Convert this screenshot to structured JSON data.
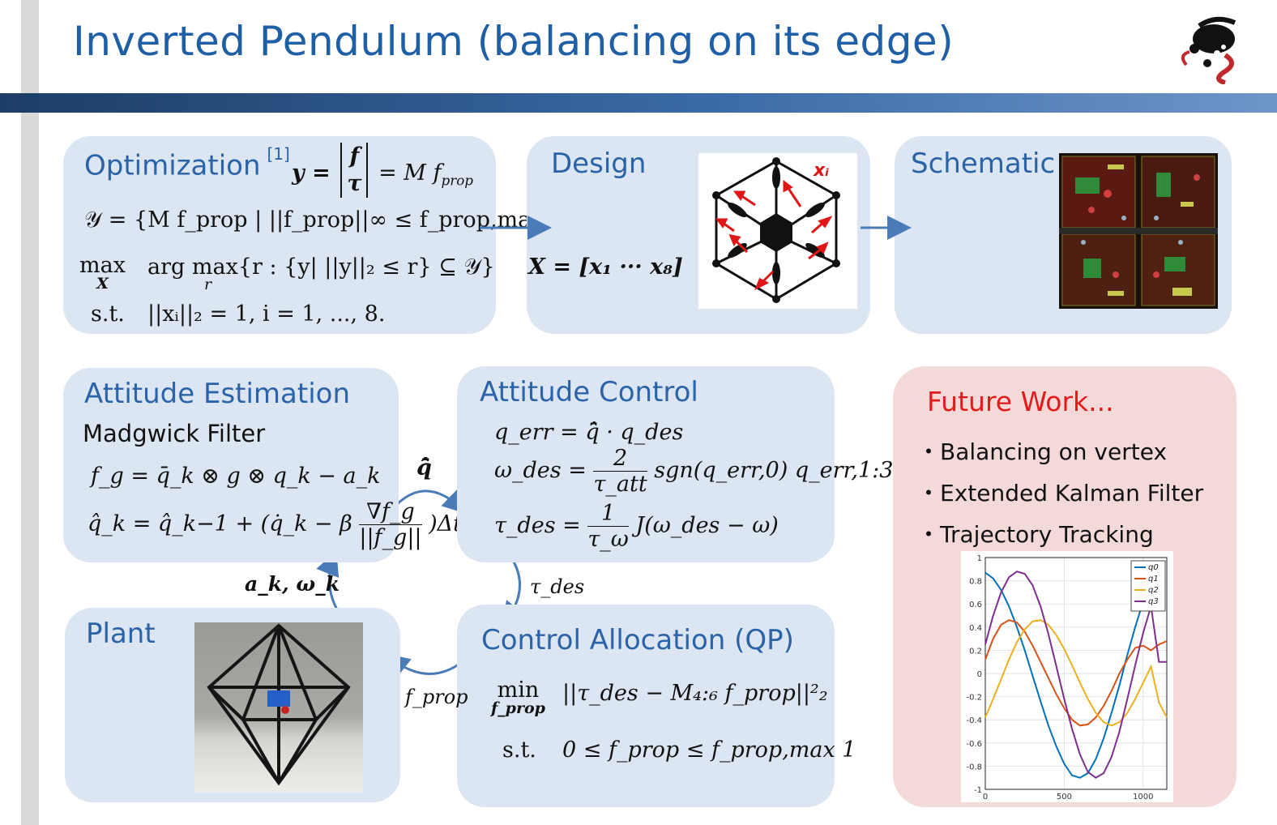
{
  "slide": {
    "title": "Inverted Pendulum (balancing on its edge)"
  },
  "optimization": {
    "title": "Optimization",
    "citation": "[1]",
    "eq_y_lhs": "y =",
    "eq_y_top": "f",
    "eq_y_bot": "τ",
    "eq_y_rhs": "= M f",
    "eq_y_rhs_sub": "prop",
    "eq_set": "𝒴 = {M f_prop | ||f_prop||∞ ≤ f_prop,max}",
    "eq_max": "max",
    "eq_max_var": "X",
    "eq_argmax": "arg max{r : {y| ||y||₂ ≤ r} ⊆ 𝒴}",
    "eq_argmax_var": "r",
    "eq_st": "s.t.",
    "eq_constraint": "||xᵢ||₂ = 1,  i = 1, ..., 8."
  },
  "design": {
    "title": "Design",
    "eq_X": "X = [x₁ ··· x₈]",
    "label_xi": "xᵢ"
  },
  "schematic": {
    "title": "Schematic"
  },
  "attitude_estimation": {
    "title": "Attitude Estimation",
    "subtitle": "Madgwick Filter",
    "eq_fg": "f_g = q̄_k ⊗ g ⊗ q_k − a_k",
    "eq_q_lhs": "q̂_k = q̂_k−1 + (q̇_k − β",
    "eq_q_num": "∇f_g",
    "eq_q_den": "||f_g||",
    "eq_q_rhs": ")Δt"
  },
  "attitude_control": {
    "title": "Attitude Control",
    "eq_qerr": "q_err = q̄̂ · q_des",
    "eq_omega_lhs": "ω_des =",
    "eq_omega_num": "2",
    "eq_omega_den": "τ_att",
    "eq_omega_rhs": "sgn(q_err,0) q_err,1:3",
    "eq_tau_lhs": "τ_des =",
    "eq_tau_num": "1",
    "eq_tau_den": "τ_ω",
    "eq_tau_rhs": "J(ω_des − ω)"
  },
  "control_allocation": {
    "title": "Control Allocation (QP)",
    "eq_min": "min",
    "eq_min_var": "f_prop",
    "eq_obj": "||τ_des − M₄:₆ f_prop||²₂",
    "eq_st": "s.t.",
    "eq_con": "0 ≤ f_prop ≤ f_prop,max 1"
  },
  "plant": {
    "title": "Plant"
  },
  "flow_labels": {
    "q_hat_bar": "q̄̂",
    "tau_des": "τ_des",
    "f_prop": "f_prop",
    "ak_omegak": "a_k,  ω_k"
  },
  "future_work": {
    "title": "Future Work...",
    "items": [
      "・Balancing on vertex",
      "・Extended Kalman Filter",
      "・Trajectory Tracking"
    ]
  },
  "chart_data": {
    "type": "line",
    "x_ticks": [
      0,
      500,
      1000
    ],
    "y_ticks": [
      "1",
      "0.8",
      "0.6",
      "0.4",
      "0.2",
      "0",
      "-0.2",
      "-0.4",
      "-0.6",
      "-0.8",
      "-1"
    ],
    "xlim": [
      0,
      1150
    ],
    "ylim": [
      -1,
      1
    ],
    "grid": true,
    "legend": "top-right",
    "series": [
      {
        "name": "q0",
        "color": "#0072bd",
        "x": [
          0,
          50,
          100,
          150,
          200,
          250,
          300,
          350,
          400,
          450,
          500,
          550,
          600,
          650,
          700,
          750,
          800,
          850,
          900,
          950,
          1000,
          1050,
          1100
        ],
        "y": [
          0.87,
          0.82,
          0.72,
          0.58,
          0.4,
          0.2,
          -0.02,
          -0.24,
          -0.45,
          -0.63,
          -0.78,
          -0.88,
          -0.9,
          -0.86,
          -0.74,
          -0.56,
          -0.34,
          -0.1,
          0.16,
          0.4,
          0.62,
          0.79,
          0.9
        ]
      },
      {
        "name": "q1",
        "color": "#d95319",
        "x": [
          0,
          50,
          100,
          150,
          200,
          250,
          300,
          350,
          400,
          450,
          500,
          550,
          600,
          650,
          700,
          750,
          800,
          850,
          900,
          950,
          1000,
          1050,
          1100,
          1150
        ],
        "y": [
          0.12,
          0.3,
          0.42,
          0.46,
          0.44,
          0.36,
          0.24,
          0.1,
          -0.04,
          -0.18,
          -0.3,
          -0.4,
          -0.45,
          -0.44,
          -0.38,
          -0.28,
          -0.15,
          0.0,
          0.12,
          0.22,
          0.24,
          0.2,
          0.25,
          0.28
        ]
      },
      {
        "name": "q2",
        "color": "#edb120",
        "x": [
          0,
          50,
          100,
          150,
          200,
          250,
          300,
          350,
          400,
          450,
          500,
          550,
          600,
          650,
          700,
          750,
          800,
          850,
          900,
          950,
          1000,
          1050,
          1100,
          1150
        ],
        "y": [
          -0.38,
          -0.22,
          -0.05,
          0.12,
          0.27,
          0.38,
          0.45,
          0.46,
          0.42,
          0.33,
          0.21,
          0.07,
          -0.08,
          -0.22,
          -0.34,
          -0.42,
          -0.45,
          -0.42,
          -0.34,
          -0.22,
          -0.08,
          0.06,
          -0.25,
          -0.38
        ]
      },
      {
        "name": "q3",
        "color": "#7e2f8e",
        "x": [
          0,
          50,
          100,
          150,
          200,
          250,
          300,
          350,
          400,
          450,
          500,
          550,
          600,
          650,
          700,
          750,
          800,
          850,
          900,
          950,
          1000,
          1050,
          1100,
          1150
        ],
        "y": [
          0.25,
          0.5,
          0.7,
          0.83,
          0.88,
          0.86,
          0.76,
          0.58,
          0.34,
          0.06,
          -0.22,
          -0.48,
          -0.7,
          -0.85,
          -0.9,
          -0.86,
          -0.72,
          -0.5,
          -0.22,
          0.07,
          0.35,
          0.58,
          0.1,
          0.1
        ]
      }
    ]
  },
  "colors": {
    "title_blue": "#1f5fa6",
    "card_bg": "#dce6f2",
    "future_bg": "#f4d9d9",
    "future_title": "#e21b1b",
    "arrow_blue": "#4a7cb9"
  }
}
